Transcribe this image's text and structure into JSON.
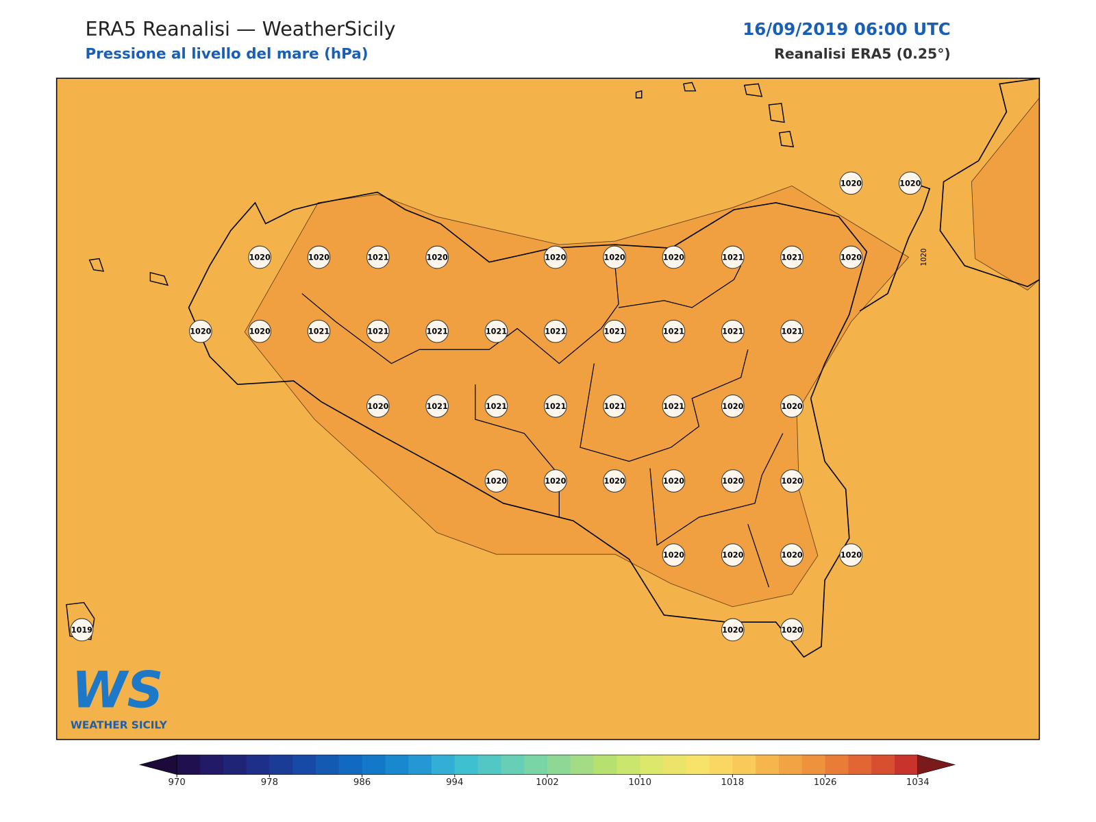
{
  "header": {
    "title": "ERA5 Reanalisi — WeatherSicily",
    "subtitle": "Pressione al livello del mare (hPa)",
    "date": "16/09/2019 06:00 UTC",
    "source": "Reanalisi ERA5 (0.25°)"
  },
  "map": {
    "background_color": "#f4b24a",
    "region_color": "#f0a040",
    "contour_label": "1020",
    "stations": [
      1020,
      1020,
      1020,
      1020,
      1021,
      1020,
      1020,
      1020,
      1020,
      1021,
      1021,
      1020,
      1020,
      1020,
      1021,
      1021,
      1021,
      1021,
      1021,
      1021,
      1021,
      1021,
      1021,
      1020,
      1021,
      1021,
      1021,
      1021,
      1021,
      1020,
      1020,
      1020,
      1020,
      1020,
      1020,
      1020,
      1020,
      1020,
      1020,
      1020,
      1020,
      1019,
      1020,
      1020
    ]
  },
  "colorbar": {
    "lim": [
      970,
      1034
    ],
    "ticks": [
      970,
      978,
      986,
      994,
      1002,
      1010,
      1018,
      1026,
      1034
    ],
    "under_color": "#1b0a3a",
    "over_color": "#7a1a1a",
    "colors": [
      "#20104f",
      "#221a66",
      "#1f2477",
      "#1d2f88",
      "#1a3c97",
      "#1749a6",
      "#145ab3",
      "#126ac0",
      "#1378c8",
      "#1a88cf",
      "#2598d3",
      "#33aed4",
      "#3fc0d0",
      "#52c8c4",
      "#66cfb6",
      "#79d4a6",
      "#8ed896",
      "#a3dc84",
      "#b7e16f",
      "#cae66d",
      "#dbe86b",
      "#eae56a",
      "#f7e26a",
      "#fad763",
      "#f9c95a",
      "#f6b64e",
      "#f2a444",
      "#ee923c",
      "#e97c37",
      "#e26534",
      "#d84f30",
      "#c8342c"
    ]
  },
  "logo": {
    "mark": "WS",
    "text": "WEATHER SICILY"
  }
}
